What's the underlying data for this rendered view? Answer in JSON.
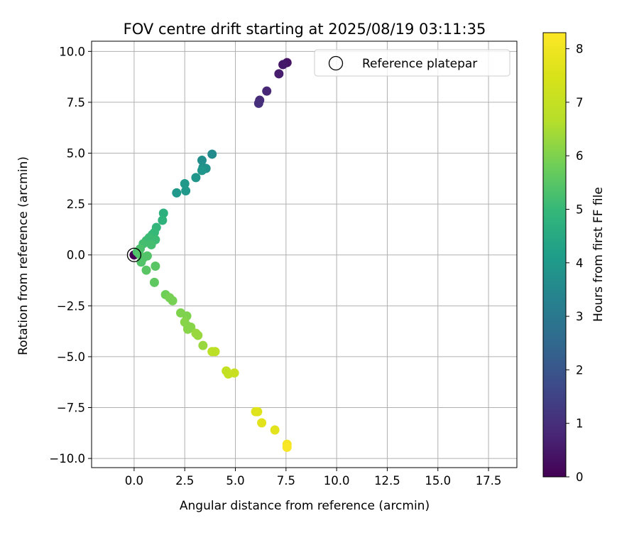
{
  "chart_data": {
    "type": "scatter",
    "title": "FOV centre drift starting at 2025/08/19 03:11:35",
    "xlabel": "Angular distance from reference (arcmin)",
    "ylabel": "Rotation from reference (arcmin)",
    "xlim": [
      -2.1,
      18.9
    ],
    "ylim": [
      -10.45,
      10.5
    ],
    "xticks": [
      "0.0",
      "2.5",
      "5.0",
      "7.5",
      "10.0",
      "12.5",
      "15.0",
      "17.5"
    ],
    "yticks": [
      "−10.0",
      "−7.5",
      "−5.0",
      "−2.5",
      "0.0",
      "2.5",
      "5.0",
      "7.5",
      "10.0"
    ],
    "grid": true,
    "legend": {
      "placement": "top-right",
      "entries": [
        "Reference platepar"
      ]
    },
    "reference_point": {
      "x": 0.0,
      "y": 0.0
    },
    "colorbar": {
      "label": "Hours from first FF file",
      "colormap": "viridis",
      "range": [
        0,
        8.3
      ],
      "ticks": [
        "0",
        "1",
        "2",
        "3",
        "4",
        "5",
        "6",
        "7",
        "8"
      ]
    },
    "points": [
      {
        "x": 0.0,
        "y": 0.0,
        "c": 0.0
      },
      {
        "x": 7.55,
        "y": 9.45,
        "c": 0.4
      },
      {
        "x": 7.35,
        "y": 9.35,
        "c": 0.5
      },
      {
        "x": 7.15,
        "y": 8.9,
        "c": 0.6
      },
      {
        "x": 6.55,
        "y": 8.05,
        "c": 0.8
      },
      {
        "x": 6.2,
        "y": 7.6,
        "c": 0.9
      },
      {
        "x": 6.15,
        "y": 7.45,
        "c": 1.0
      },
      {
        "x": 3.85,
        "y": 4.95,
        "c": 3.6
      },
      {
        "x": 3.35,
        "y": 4.65,
        "c": 3.7
      },
      {
        "x": 3.4,
        "y": 4.3,
        "c": 3.8
      },
      {
        "x": 3.55,
        "y": 4.25,
        "c": 3.8
      },
      {
        "x": 3.35,
        "y": 4.15,
        "c": 3.9
      },
      {
        "x": 3.05,
        "y": 3.8,
        "c": 3.9
      },
      {
        "x": 2.5,
        "y": 3.5,
        "c": 4.0
      },
      {
        "x": 2.1,
        "y": 3.05,
        "c": 4.0
      },
      {
        "x": 2.55,
        "y": 3.15,
        "c": 4.0
      },
      {
        "x": 1.45,
        "y": 2.05,
        "c": 4.7
      },
      {
        "x": 1.4,
        "y": 1.7,
        "c": 4.8
      },
      {
        "x": 1.1,
        "y": 1.35,
        "c": 4.9
      },
      {
        "x": 1.0,
        "y": 1.1,
        "c": 5.0
      },
      {
        "x": 0.9,
        "y": 1.0,
        "c": 5.0
      },
      {
        "x": 0.75,
        "y": 0.85,
        "c": 5.1
      },
      {
        "x": 0.6,
        "y": 0.7,
        "c": 5.1
      },
      {
        "x": 1.05,
        "y": 0.75,
        "c": 5.1
      },
      {
        "x": 0.45,
        "y": 0.55,
        "c": 5.2
      },
      {
        "x": 0.85,
        "y": 0.5,
        "c": 5.2
      },
      {
        "x": 0.3,
        "y": 0.3,
        "c": 5.3
      },
      {
        "x": 0.15,
        "y": 0.15,
        "c": 5.3
      },
      {
        "x": 0.25,
        "y": 0.05,
        "c": 5.4
      },
      {
        "x": 0.45,
        "y": -0.15,
        "c": 5.4
      },
      {
        "x": 0.35,
        "y": -0.35,
        "c": 5.4
      },
      {
        "x": 0.65,
        "y": -0.05,
        "c": 5.4
      },
      {
        "x": 0.6,
        "y": -0.75,
        "c": 5.5
      },
      {
        "x": 1.05,
        "y": -0.55,
        "c": 5.5
      },
      {
        "x": 1.0,
        "y": -1.35,
        "c": 5.6
      },
      {
        "x": 1.55,
        "y": -1.95,
        "c": 5.8
      },
      {
        "x": 1.75,
        "y": -2.1,
        "c": 5.9
      },
      {
        "x": 1.9,
        "y": -2.25,
        "c": 5.9
      },
      {
        "x": 2.3,
        "y": -2.85,
        "c": 6.0
      },
      {
        "x": 2.6,
        "y": -3.0,
        "c": 6.0
      },
      {
        "x": 2.5,
        "y": -3.3,
        "c": 6.1
      },
      {
        "x": 2.65,
        "y": -3.5,
        "c": 6.1
      },
      {
        "x": 2.8,
        "y": -3.55,
        "c": 6.1
      },
      {
        "x": 2.65,
        "y": -3.65,
        "c": 6.1
      },
      {
        "x": 3.05,
        "y": -3.85,
        "c": 6.3
      },
      {
        "x": 3.15,
        "y": -3.95,
        "c": 6.3
      },
      {
        "x": 3.4,
        "y": -4.45,
        "c": 6.3
      },
      {
        "x": 3.85,
        "y": -4.75,
        "c": 6.8
      },
      {
        "x": 4.0,
        "y": -4.75,
        "c": 6.8
      },
      {
        "x": 4.55,
        "y": -5.7,
        "c": 7.0
      },
      {
        "x": 4.65,
        "y": -5.85,
        "c": 7.0
      },
      {
        "x": 4.95,
        "y": -5.8,
        "c": 7.1
      },
      {
        "x": 6.0,
        "y": -7.7,
        "c": 7.6
      },
      {
        "x": 6.1,
        "y": -7.7,
        "c": 7.6
      },
      {
        "x": 6.3,
        "y": -8.25,
        "c": 7.7
      },
      {
        "x": 6.95,
        "y": -8.6,
        "c": 7.7
      },
      {
        "x": 7.55,
        "y": -9.3,
        "c": 8.1
      },
      {
        "x": 7.55,
        "y": -9.45,
        "c": 8.2
      }
    ]
  }
}
